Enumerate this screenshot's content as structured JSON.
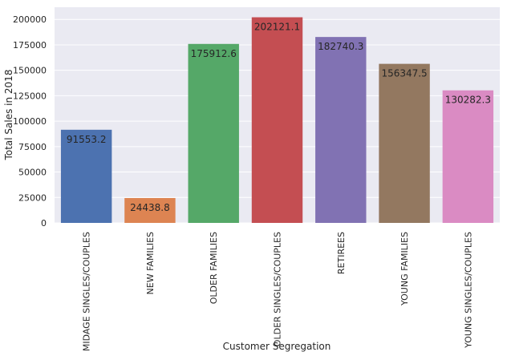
{
  "chart_data": {
    "type": "bar",
    "categories": [
      "MIDAGE SINGLES/COUPLES",
      "NEW FAMILIES",
      "OLDER FAMILIES",
      "OLDER SINGLES/COUPLES",
      "RETIREES",
      "YOUNG FAMILIES",
      "YOUNG SINGLES/COUPLES"
    ],
    "values": [
      91553.2,
      24438.8,
      175912.6,
      202121.1,
      182740.3,
      156347.5,
      130282.3
    ],
    "data_labels": [
      "91553.2",
      "24438.8",
      "175912.6",
      "202121.1",
      "182740.3",
      "156347.5",
      "130282.3"
    ],
    "colors": [
      "#4c72b0",
      "#dd8452",
      "#55a868",
      "#c44e52",
      "#8172b3",
      "#937860",
      "#da8bc3"
    ],
    "xlabel": "Customer Segregation",
    "ylabel": "Total Sales in 2018",
    "yticks": [
      0,
      25000,
      50000,
      75000,
      100000,
      125000,
      150000,
      175000,
      200000
    ],
    "ylim": [
      0,
      212000
    ],
    "grid": true,
    "background": "#eaeaf2",
    "grid_color": "#ffffff"
  }
}
